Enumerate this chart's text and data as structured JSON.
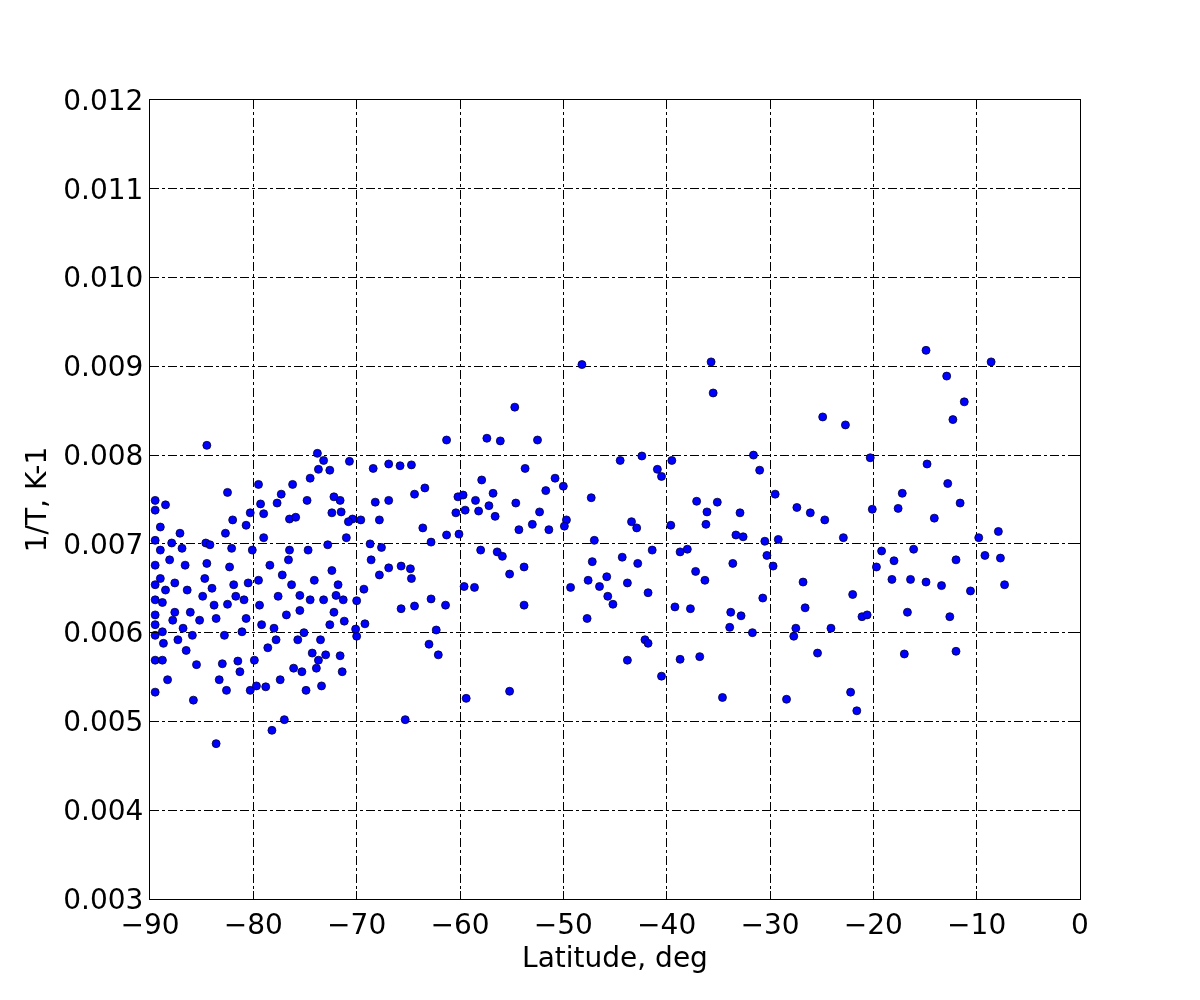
{
  "chart_data": {
    "type": "scatter",
    "xlabel": "Latitude, deg",
    "ylabel": "1/T, K-1",
    "xlim": [
      -90,
      0
    ],
    "xticks": [
      {
        "value": -90,
        "label": "−90"
      },
      {
        "value": -80,
        "label": "−80"
      },
      {
        "value": -70,
        "label": "−70"
      },
      {
        "value": -60,
        "label": "−60"
      },
      {
        "value": -50,
        "label": "−50"
      },
      {
        "value": -40,
        "label": "−40"
      },
      {
        "value": -30,
        "label": "−30"
      },
      {
        "value": -20,
        "label": "−20"
      },
      {
        "value": -10,
        "label": "−10"
      },
      0
    ],
    "ylim": [
      0.003,
      0.012
    ],
    "yticks": [
      {
        "value": 0.003,
        "label": "0.003"
      },
      {
        "value": 0.004,
        "label": "0.004"
      },
      {
        "value": 0.005,
        "label": "0.005"
      },
      {
        "value": 0.006,
        "label": "0.006"
      },
      {
        "value": 0.007,
        "label": "0.007"
      },
      {
        "value": 0.008,
        "label": "0.008"
      },
      {
        "value": 0.009,
        "label": "0.009"
      },
      {
        "value": 0.01,
        "label": "0.010"
      },
      {
        "value": 0.011,
        "label": "0.011"
      },
      {
        "value": 0.012,
        "label": "0.012"
      }
    ],
    "grid": true,
    "marker": "circle",
    "series": [
      {
        "color": "#0000ff",
        "x": [
          -48.2,
          -35.7,
          -35.5,
          -14.9,
          -8.6,
          -12.9,
          -22.7,
          -24.9,
          -11.2,
          -12.3,
          -54.7,
          -14.8,
          -20.3,
          -31.6,
          -31.0,
          -42.4,
          -39.5,
          -40.9,
          -40.5,
          -44.5,
          -61.3,
          -57.4,
          -56.1,
          -52.5,
          -12.8,
          -17.2,
          -29.5,
          -37.1,
          -35.1,
          -47.3,
          -50.8,
          -50.0,
          -11.6,
          -14.1,
          -17.6,
          -20.1,
          -27.4,
          -26.1,
          -24.7,
          -32.9,
          -43.4,
          -42.9,
          -41.4,
          -39.6,
          -36.2,
          -36.1,
          -33.3,
          -32.6,
          -30.5,
          -29.2,
          -22.9,
          -9.8,
          -7.9,
          -12.0,
          -9.2,
          -7.7,
          -19.7,
          -16.1,
          -19.2,
          -18.0,
          -18.2,
          -16.4,
          -14.9,
          -13.4,
          -10.6,
          -7.3,
          -16.7,
          -12.6,
          -12.0,
          -17.0,
          -21.1,
          -20.6,
          -22.0,
          -26.6,
          -26.8,
          -29.7,
          -30.3,
          -33.6,
          -36.3,
          -37.2,
          -38.0,
          -38.7,
          -43.8,
          -42.8,
          -44.3,
          -42.1,
          -41.8,
          -41.8,
          -39.2,
          -37.7,
          -33.8,
          -32.8,
          -31.7,
          -30.7,
          -33.9,
          -27.7,
          -27.5,
          -24.1,
          -25.4,
          -38.7,
          -36.8,
          -43.8,
          -40.5,
          -34.6,
          -28.4,
          -22.2,
          -21.6,
          -47.7,
          -45.2,
          -45.7,
          -46.5,
          -49.3,
          -47.6,
          -45.8,
          -47.2,
          -47.0,
          -49.7,
          -49.9,
          -51.4,
          -53.0,
          -52.3,
          -54.3,
          -54.6,
          -53.7,
          -51.7,
          -56.8,
          -57.9,
          -58.5,
          -57.2,
          -58.2,
          -60.2,
          -59.7,
          -59.5,
          -60.4,
          -56.6,
          -56.4,
          -55.9,
          -53.8,
          -55.2,
          -58.0,
          -59.6,
          -58.6,
          -60.1,
          -61.3,
          -53.8,
          -59.4,
          -55.2,
          -65.3,
          -62.3,
          -62.1,
          -61.4,
          -62.8,
          -64.4,
          -63.0,
          -65.7,
          -64.7,
          -64.8,
          -65.7,
          -62.8,
          -63.6,
          -63.4,
          -64.4,
          -64.7,
          -65.8,
          -66.9,
          -68.4,
          -67.8,
          -66.9,
          -68.2,
          -68.7,
          -67.6,
          -68.6,
          -67.8,
          -66.9,
          -69.3,
          -69.2,
          -70.0,
          -70.1,
          -70.0,
          -69.6,
          -70.4,
          -70.8,
          -70.7,
          -71.0,
          -71.3,
          -71.2,
          -71.6,
          -71.4,
          -71.6,
          -71.5,
          -72.4,
          -72.6,
          -72.2,
          -73.2,
          -73.8,
          -73.7,
          -74.5,
          -74.8,
          -76.2,
          -76.5,
          -77.3,
          -77.7,
          -79.3,
          -79.0,
          -79.5,
          -82.5,
          -84.5,
          -82.0,
          -80.3,
          -82.7,
          -80.7,
          -89.5,
          -89.5,
          -89.5,
          -89.5,
          -89.5,
          -89.5,
          -89.5,
          -89.5,
          -89.5,
          -89.5,
          -89.5,
          -89.0,
          -89.0,
          -89.0,
          -88.8,
          -88.8,
          -88.8,
          -88.5,
          -88.5,
          -88.7,
          -88.1,
          -87.9,
          -87.6,
          -87.6,
          -87.3,
          -87.8,
          -88.3,
          -87.1,
          -86.9,
          -86.6,
          -86.4,
          -86.1,
          -86.8,
          -86.5,
          -85.9,
          -85.8,
          -85.5,
          -85.2,
          -84.9,
          -84.7,
          -84.5,
          -84.6,
          -84.2,
          -84.0,
          -83.8,
          -83.6,
          -83.6,
          -83.3,
          -83.0,
          -82.8,
          -82.6,
          -82.5,
          -82.3,
          -82.1,
          -81.9,
          -81.7,
          -81.5,
          -81.3,
          -81.1,
          -80.9,
          -80.7,
          -80.5,
          -80.3,
          -80.1,
          -79.9,
          -79.7,
          -79.5,
          -79.4,
          -79.2,
          -79.0,
          -78.8,
          -78.6,
          -78.4,
          -78.2,
          -78.0,
          -77.8,
          -77.6,
          -77.4,
          -77.2,
          -77.0,
          -76.8,
          -76.6,
          -76.5,
          -76.3,
          -76.1,
          -75.9,
          -75.7,
          -75.5,
          -75.3,
          -75.1,
          -74.9,
          -74.7,
          -74.5,
          -74.3,
          -74.1,
          -73.9,
          -73.7,
          -73.5,
          -73.4,
          -73.2,
          -73.0,
          -72.8,
          -72.6,
          -72.4,
          -72.2,
          -72.0,
          -71.8,
          -75.5
        ],
        "values": [
          0.00902,
          0.00905,
          0.0087,
          0.00918,
          0.00905,
          0.00889,
          0.00834,
          0.00843,
          0.0086,
          0.0084,
          0.00854,
          0.0079,
          0.00797,
          0.008,
          0.00783,
          0.00799,
          0.00794,
          0.00784,
          0.00776,
          0.00794,
          0.00817,
          0.00819,
          0.00816,
          0.00817,
          0.00768,
          0.00757,
          0.00756,
          0.00748,
          0.00747,
          0.00752,
          0.00774,
          0.00765,
          0.00746,
          0.00729,
          0.0074,
          0.00739,
          0.00741,
          0.00735,
          0.00727,
          0.00735,
          0.00725,
          0.00718,
          0.00693,
          0.00721,
          0.00722,
          0.00736,
          0.0071,
          0.00708,
          0.00703,
          0.00705,
          0.00707,
          0.00707,
          0.00714,
          0.00682,
          0.00687,
          0.00684,
          0.00674,
          0.00694,
          0.00692,
          0.00681,
          0.0066,
          0.0066,
          0.00657,
          0.00653,
          0.00647,
          0.00654,
          0.00623,
          0.00618,
          0.00579,
          0.00576,
          0.00618,
          0.0062,
          0.00643,
          0.00628,
          0.00657,
          0.00675,
          0.00687,
          0.00678,
          0.00659,
          0.00669,
          0.00694,
          0.00691,
          0.00656,
          0.00678,
          0.00685,
          0.00592,
          0.00588,
          0.00645,
          0.00629,
          0.00627,
          0.00623,
          0.00619,
          0.006,
          0.00639,
          0.00606,
          0.00596,
          0.00605,
          0.00605,
          0.00577,
          0.0057,
          0.00573,
          0.00569,
          0.00551,
          0.00527,
          0.00525,
          0.00533,
          0.00512,
          0.00616,
          0.00632,
          0.00641,
          0.00652,
          0.00651,
          0.00659,
          0.00663,
          0.0068,
          0.00704,
          0.00727,
          0.0072,
          0.00716,
          0.00722,
          0.00736,
          0.00716,
          0.00746,
          0.00785,
          0.0076,
          0.00757,
          0.00772,
          0.00749,
          0.00743,
          0.00737,
          0.00753,
          0.00755,
          0.00738,
          0.00735,
          0.00731,
          0.00691,
          0.00686,
          0.00674,
          0.00666,
          0.00693,
          0.00652,
          0.00651,
          0.00711,
          0.0071,
          0.00631,
          0.00526,
          0.00534,
          0.00502,
          0.00603,
          0.00575,
          0.00631,
          0.00638,
          0.0063,
          0.00587,
          0.00627,
          0.00661,
          0.00672,
          0.00675,
          0.00702,
          0.00718,
          0.00763,
          0.00756,
          0.00789,
          0.00788,
          0.0079,
          0.00785,
          0.00727,
          0.00749,
          0.00747,
          0.007,
          0.00696,
          0.00682,
          0.00665,
          0.00673,
          0.00649,
          0.0061,
          0.00596,
          0.00604,
          0.00636,
          0.00727,
          0.00728,
          0.00725,
          0.00793,
          0.00707,
          0.00637,
          0.00613,
          0.00574,
          0.00556,
          0.00749,
          0.00736,
          0.00735,
          0.00783,
          0.00753,
          0.00794,
          0.00802,
          0.00784,
          0.00774,
          0.00749,
          0.00767,
          0.00728,
          0.00756,
          0.00746,
          0.00745,
          0.00734,
          0.00767,
          0.00758,
          0.00811,
          0.00727,
          0.00735,
          0.00712,
          0.00721,
          0.00749,
          0.00738,
          0.00704,
          0.00676,
          0.00654,
          0.00637,
          0.0062,
          0.00609,
          0.00597,
          0.00569,
          0.00533,
          0.00719,
          0.00693,
          0.00661,
          0.00634,
          0.00601,
          0.00569,
          0.00744,
          0.00648,
          0.00588,
          0.00682,
          0.00701,
          0.00656,
          0.00623,
          0.00592,
          0.00614,
          0.00547,
          0.00712,
          0.00695,
          0.00676,
          0.00648,
          0.00623,
          0.00605,
          0.0058,
          0.00597,
          0.00524,
          0.00564,
          0.00614,
          0.00641,
          0.00661,
          0.00678,
          0.00701,
          0.00699,
          0.0065,
          0.00631,
          0.00616,
          0.00475,
          0.00547,
          0.00565,
          0.00597,
          0.00535,
          0.00632,
          0.00674,
          0.00695,
          0.00654,
          0.00641,
          0.00568,
          0.00556,
          0.00601,
          0.00637,
          0.00616,
          0.00656,
          0.00535,
          0.00693,
          0.00569,
          0.0054,
          0.00659,
          0.00631,
          0.00609,
          0.00707,
          0.00539,
          0.00583,
          0.00676,
          0.0049,
          0.00605,
          0.00592,
          0.00641,
          0.00547,
          0.00665,
          0.00502,
          0.0062,
          0.00682,
          0.00693,
          0.00654,
          0.0056,
          0.0073,
          0.00592,
          0.00625,
          0.00556,
          0.006,
          0.00535,
          0.00693,
          0.00637,
          0.00577,
          0.00659,
          0.0056,
          0.00569,
          0.00592,
          0.0054,
          0.00637,
          0.00575,
          0.00699,
          0.00609,
          0.0067,
          0.00623,
          0.00642,
          0.00654,
          0.00642
        ]
      }
    ]
  }
}
